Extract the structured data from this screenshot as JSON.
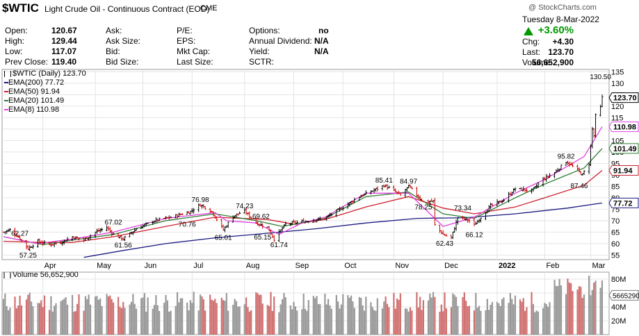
{
  "header": {
    "symbol": "$WTIC",
    "name": "Light Crude Oil - Continuous Contract (EOD)",
    "exchange": "CME",
    "watermark": "@ StockCharts.com",
    "date": "Tuesday  8-Mar-2022"
  },
  "quote": {
    "col1": [
      {
        "label": "Open:",
        "value": "120.67"
      },
      {
        "label": "High:",
        "value": "129.44"
      },
      {
        "label": "Low:",
        "value": "117.07"
      },
      {
        "label": "Prev Close:",
        "value": "119.40"
      }
    ],
    "col2": [
      {
        "label": "Ask:",
        "value": ""
      },
      {
        "label": "Ask Size:",
        "value": ""
      },
      {
        "label": "Bid:",
        "value": ""
      },
      {
        "label": "Bid Size:",
        "value": ""
      }
    ],
    "col3": [
      {
        "label": "P/E:",
        "value": ""
      },
      {
        "label": "EPS:",
        "value": ""
      },
      {
        "label": "Mkt Cap:",
        "value": ""
      },
      {
        "label": "Last Size:",
        "value": ""
      }
    ],
    "col4": [
      {
        "label": "Options:",
        "value": "no"
      },
      {
        "label": "Annual Dividend:",
        "value": "N/A"
      },
      {
        "label": "Yield:",
        "value": "N/A"
      },
      {
        "label": "SCTR:",
        "value": ""
      }
    ],
    "right": {
      "pct_change": "+3.60%",
      "chg_label": "Chg:",
      "chg": "+4.30",
      "last_label": "Last:",
      "last": "123.70",
      "volume_label": "Volume:",
      "volume": "56,652,900"
    }
  },
  "colors": {
    "up": "#000000",
    "down": "#cc0000",
    "ema200": "#1a1a80",
    "ema50": "#cc2030",
    "ema20": "#2e7d32",
    "ema8": "#e040e0",
    "vol_up": "#999999",
    "vol_down": "#d07070",
    "pct": "#009900"
  },
  "chart_data": {
    "type": "line",
    "title": "$WTIC (Daily) 123.70",
    "legend": [
      {
        "name": "EMA(200) 77.72",
        "color": "#1a1a80"
      },
      {
        "name": "EMA(50) 91.94",
        "color": "#cc2030"
      },
      {
        "name": "EMA(20) 101.49",
        "color": "#2e7d32"
      },
      {
        "name": "EMA(8) 110.98",
        "color": "#e040e0"
      }
    ],
    "legend_position": "top-left",
    "ylim": [
      53,
      136
    ],
    "y_ticks": [
      55,
      60,
      65,
      70,
      75,
      80,
      85,
      90,
      95,
      100,
      105,
      110,
      115,
      120,
      125,
      130,
      135
    ],
    "x_ticks": [
      {
        "label": "Apr",
        "x": "2021-04-01"
      },
      {
        "label": "May",
        "x": "2021-05-03"
      },
      {
        "label": "Jun",
        "x": "2021-06-01"
      },
      {
        "label": "Jul",
        "x": "2021-07-01"
      },
      {
        "label": "Aug",
        "x": "2021-08-02"
      },
      {
        "label": "Sep",
        "x": "2021-09-01"
      },
      {
        "label": "Oct",
        "x": "2021-10-01"
      },
      {
        "label": "Nov",
        "x": "2021-11-01"
      },
      {
        "label": "Dec",
        "x": "2021-12-01"
      },
      {
        "label": "2022",
        "x": "2022-01-03"
      },
      {
        "label": "Feb",
        "x": "2022-02-01"
      },
      {
        "label": "Mar",
        "x": "2022-03-01"
      }
    ],
    "series": [
      {
        "name": "EMA(200)",
        "points": [
          [
            "2021-04-26",
            54.0
          ],
          [
            "2021-05-20",
            57.0
          ],
          [
            "2021-06-15",
            60.0
          ],
          [
            "2021-07-15",
            62.5
          ],
          [
            "2021-08-16",
            64.5
          ],
          [
            "2021-09-15",
            66.5
          ],
          [
            "2021-10-15",
            69.0
          ],
          [
            "2021-11-15",
            71.0
          ],
          [
            "2021-12-15",
            71.3
          ],
          [
            "2022-01-14",
            73.0
          ],
          [
            "2022-02-15",
            75.5
          ],
          [
            "2022-03-08",
            77.72
          ]
        ]
      },
      {
        "name": "EMA(50)",
        "points": [
          [
            "2021-03-08",
            61.0
          ],
          [
            "2021-03-29",
            60.5
          ],
          [
            "2021-04-19",
            60.5
          ],
          [
            "2021-05-14",
            63.0
          ],
          [
            "2021-06-15",
            67.5
          ],
          [
            "2021-07-15",
            71.5
          ],
          [
            "2021-08-16",
            70.5
          ],
          [
            "2021-09-01",
            68.5
          ],
          [
            "2021-09-20",
            70.5
          ],
          [
            "2021-10-15",
            76.0
          ],
          [
            "2021-11-10",
            80.5
          ],
          [
            "2021-12-01",
            75.5
          ],
          [
            "2021-12-20",
            73.0
          ],
          [
            "2022-01-14",
            76.0
          ],
          [
            "2022-02-01",
            80.0
          ],
          [
            "2022-02-25",
            85.5
          ],
          [
            "2022-03-08",
            91.94
          ]
        ]
      },
      {
        "name": "EMA(20)",
        "points": [
          [
            "2021-03-08",
            63.0
          ],
          [
            "2021-04-01",
            59.5
          ],
          [
            "2021-04-19",
            61.5
          ],
          [
            "2021-05-14",
            64.0
          ],
          [
            "2021-06-15",
            70.0
          ],
          [
            "2021-07-15",
            73.0
          ],
          [
            "2021-08-09",
            70.0
          ],
          [
            "2021-08-25",
            67.5
          ],
          [
            "2021-09-20",
            71.0
          ],
          [
            "2021-10-15",
            80.5
          ],
          [
            "2021-11-10",
            82.5
          ],
          [
            "2021-12-01",
            73.0
          ],
          [
            "2021-12-20",
            71.0
          ],
          [
            "2022-01-14",
            80.0
          ],
          [
            "2022-02-01",
            86.0
          ],
          [
            "2022-02-25",
            93.0
          ],
          [
            "2022-03-08",
            101.49
          ]
        ]
      },
      {
        "name": "EMA(8)",
        "points": [
          [
            "2021-03-08",
            63.0
          ],
          [
            "2021-03-29",
            60.0
          ],
          [
            "2021-04-19",
            62.0
          ],
          [
            "2021-05-14",
            65.0
          ],
          [
            "2021-06-15",
            71.0
          ],
          [
            "2021-07-15",
            73.5
          ],
          [
            "2021-07-22",
            70.0
          ],
          [
            "2021-08-09",
            69.0
          ],
          [
            "2021-08-23",
            64.0
          ],
          [
            "2021-09-06",
            69.0
          ],
          [
            "2021-09-20",
            71.5
          ],
          [
            "2021-10-15",
            82.0
          ],
          [
            "2021-11-10",
            82.0
          ],
          [
            "2021-12-01",
            67.5
          ],
          [
            "2021-12-20",
            71.5
          ],
          [
            "2022-01-14",
            82.0
          ],
          [
            "2022-02-01",
            88.0
          ],
          [
            "2022-02-25",
            98.0
          ],
          [
            "2022-03-08",
            110.98
          ]
        ]
      },
      {
        "name": "Price",
        "points": [
          [
            "2021-03-08",
            65.0
          ],
          [
            "2021-03-12",
            66.0
          ],
          [
            "2021-03-18",
            62.3
          ],
          [
            "2021-03-23",
            57.8
          ],
          [
            "2021-03-29",
            61.0
          ],
          [
            "2021-04-05",
            59.5
          ],
          [
            "2021-04-12",
            60.5
          ],
          [
            "2021-04-19",
            63.0
          ],
          [
            "2021-04-26",
            61.6
          ],
          [
            "2021-05-03",
            65.0
          ],
          [
            "2021-05-10",
            67.0
          ],
          [
            "2021-05-14",
            64.0
          ],
          [
            "2021-05-20",
            62.0
          ],
          [
            "2021-05-28",
            66.5
          ],
          [
            "2021-06-08",
            70.0
          ],
          [
            "2021-06-18",
            71.5
          ],
          [
            "2021-06-30",
            74.0
          ],
          [
            "2021-07-06",
            76.98
          ],
          [
            "2021-07-13",
            74.0
          ],
          [
            "2021-07-20",
            66.0
          ],
          [
            "2021-07-26",
            72.0
          ],
          [
            "2021-08-02",
            74.23
          ],
          [
            "2021-08-09",
            69.0
          ],
          [
            "2021-08-16",
            67.0
          ],
          [
            "2021-08-20",
            62.0
          ],
          [
            "2021-08-27",
            68.5
          ],
          [
            "2021-09-06",
            69.5
          ],
          [
            "2021-09-20",
            71.0
          ],
          [
            "2021-09-29",
            75.0
          ],
          [
            "2021-10-11",
            80.5
          ],
          [
            "2021-10-22",
            84.0
          ],
          [
            "2021-10-26",
            85.41
          ],
          [
            "2021-11-01",
            83.0
          ],
          [
            "2021-11-05",
            81.0
          ],
          [
            "2021-11-10",
            84.97
          ],
          [
            "2021-11-19",
            78.25
          ],
          [
            "2021-11-25",
            78.5
          ],
          [
            "2021-11-26",
            68.0
          ],
          [
            "2021-12-01",
            64.0
          ],
          [
            "2021-12-06",
            62.43
          ],
          [
            "2021-12-10",
            71.5
          ],
          [
            "2021-12-17",
            70.0
          ],
          [
            "2021-12-20",
            68.0
          ],
          [
            "2021-12-30",
            76.5
          ],
          [
            "2022-01-07",
            79.0
          ],
          [
            "2022-01-14",
            84.0
          ],
          [
            "2022-01-24",
            83.0
          ],
          [
            "2022-01-31",
            88.0
          ],
          [
            "2022-02-07",
            91.0
          ],
          [
            "2022-02-14",
            95.82
          ],
          [
            "2022-02-21",
            92.0
          ],
          [
            "2022-02-24",
            90.0
          ],
          [
            "2022-02-28",
            95.0
          ],
          [
            "2022-03-02",
            110.0
          ],
          [
            "2022-03-03",
            107.0
          ],
          [
            "2022-03-04",
            115.7
          ],
          [
            "2022-03-07",
            119.4
          ],
          [
            "2022-03-08",
            123.7
          ]
        ]
      }
    ],
    "annotations": [
      {
        "text": "62.27",
        "x": "2021-03-18",
        "y": 62.27
      },
      {
        "text": "57.25",
        "x": "2021-03-23",
        "y": 57.25
      },
      {
        "text": "67.02",
        "x": "2021-05-14",
        "y": 67.02
      },
      {
        "text": "61.56",
        "x": "2021-05-20",
        "y": 61.56
      },
      {
        "text": "76.98",
        "x": "2021-07-06",
        "y": 76.98
      },
      {
        "text": "70.76",
        "x": "2021-06-28",
        "y": 70.76
      },
      {
        "text": "65.01",
        "x": "2021-07-20",
        "y": 65.01
      },
      {
        "text": "74.23",
        "x": "2021-08-02",
        "y": 74.23
      },
      {
        "text": "69.62",
        "x": "2021-08-12",
        "y": 69.62
      },
      {
        "text": "65.15",
        "x": "2021-08-13",
        "y": 65.15
      },
      {
        "text": "61.74",
        "x": "2021-08-23",
        "y": 61.74
      },
      {
        "text": "85.41",
        "x": "2021-10-26",
        "y": 85.41
      },
      {
        "text": "84.97",
        "x": "2021-11-10",
        "y": 84.97
      },
      {
        "text": "78.25",
        "x": "2021-11-19",
        "y": 78.25
      },
      {
        "text": "73.34",
        "x": "2021-12-13",
        "y": 73.34
      },
      {
        "text": "62.43",
        "x": "2021-12-02",
        "y": 62.43
      },
      {
        "text": "66.12",
        "x": "2021-12-20",
        "y": 66.12
      },
      {
        "text": "95.82",
        "x": "2022-02-14",
        "y": 95.82
      },
      {
        "text": "87.46",
        "x": "2022-02-22",
        "y": 87.46
      },
      {
        "text": "130.50",
        "x": "2022-03-07",
        "y": 130.5
      }
    ],
    "price_tags": [
      {
        "text": "123.70",
        "y": 123.7,
        "color": "#000000"
      },
      {
        "text": "110.98",
        "y": 110.98,
        "color": "#e040e0"
      },
      {
        "text": "101.49",
        "y": 101.49,
        "color": "#2e7d32"
      },
      {
        "text": "91.94",
        "y": 91.94,
        "color": "#cc2030"
      },
      {
        "text": "77.72",
        "y": 77.72,
        "color": "#1a1a80"
      }
    ],
    "volume": {
      "label": "Volume 56,652,900",
      "ylim": [
        0,
        90
      ],
      "y_ticks": [
        {
          "label": "20M",
          "value": 20
        },
        {
          "label": "40M",
          "value": 40
        },
        {
          "label": "60M",
          "value": 60
        },
        {
          "label": "80M",
          "value": 80
        }
      ],
      "current_tag": "56652900",
      "current_value": 56.65
    }
  }
}
